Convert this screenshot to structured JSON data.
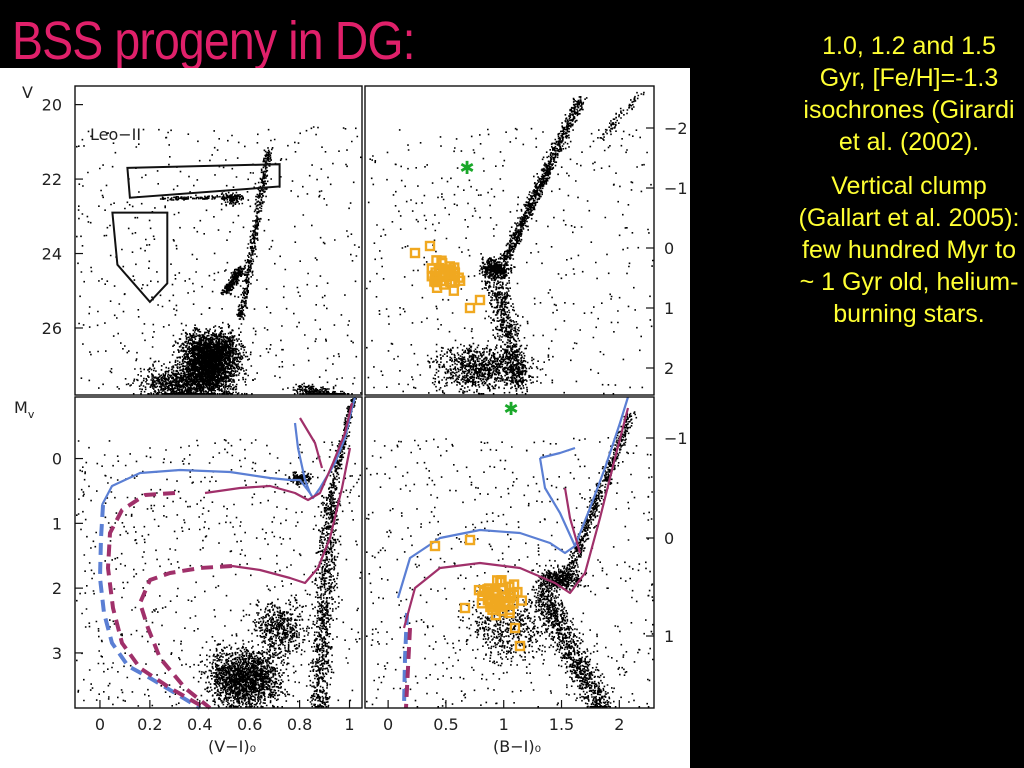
{
  "slide": {
    "title": "BSS progeny in DG:",
    "note1": "1.0, 1.2 and 1.5 Gyr, [Fe/H]=-1.3 isochrones (Girardi et al. (2002).",
    "note2": "Vertical clump (Gallart et al. 2005):  few hundred Myr to ~ 1 Gyr old, helium-burning stars."
  },
  "colors": {
    "title": "#e0206a",
    "notes": "#ffff33",
    "isochrone_blue": "#5b7fd4",
    "isochrone_purple": "#a0306a",
    "bss": "#f0a820",
    "star": "#1aa82a"
  },
  "chart_data": [
    {
      "panel": "top-left",
      "type": "scatter",
      "label": "Leo−II",
      "ylabel": "V",
      "xlim": [
        -0.1,
        1.05
      ],
      "ylim": [
        27.8,
        19.5
      ],
      "yticks": [
        "20",
        "22",
        "24",
        "26"
      ],
      "selection_boxes": [
        {
          "name": "upper box",
          "points": [
            [
              0.11,
              21.7
            ],
            [
              0.72,
              21.6
            ],
            [
              0.72,
              22.2
            ],
            [
              0.12,
              22.5
            ]
          ]
        },
        {
          "name": "lower box",
          "points": [
            [
              0.05,
              22.9
            ],
            [
              0.27,
              22.9
            ],
            [
              0.27,
              24.8
            ],
            [
              0.2,
              25.3
            ],
            [
              0.07,
              24.3
            ]
          ]
        }
      ]
    },
    {
      "panel": "top-right",
      "type": "scatter",
      "right_ticks": [
        "−2",
        "−1",
        "0",
        "1",
        "2"
      ],
      "green_star": {
        "x": 0.55,
        "y": 21.2
      }
    },
    {
      "panel": "bottom-left",
      "type": "scatter+line",
      "ylabel": "Mv",
      "xlabel": "(V−I)₀",
      "xlim": [
        -0.1,
        1.05
      ],
      "ylim": [
        3.85,
        -0.95
      ],
      "xticks": [
        "0",
        "0.2",
        "0.4",
        "0.6",
        "0.8",
        "1"
      ],
      "yticks": [
        "0",
        "1",
        "2",
        "3"
      ]
    },
    {
      "panel": "bottom-right",
      "type": "scatter+line",
      "xlabel": "(B−I)₀",
      "xlim": [
        -0.2,
        2.3
      ],
      "right_ticks": [
        "−1",
        "0",
        "1"
      ],
      "xticks": [
        "0",
        "0.5",
        "1",
        "1.5",
        "2"
      ],
      "green_star": {
        "x": 0.95,
        "y": -0.7
      }
    }
  ]
}
